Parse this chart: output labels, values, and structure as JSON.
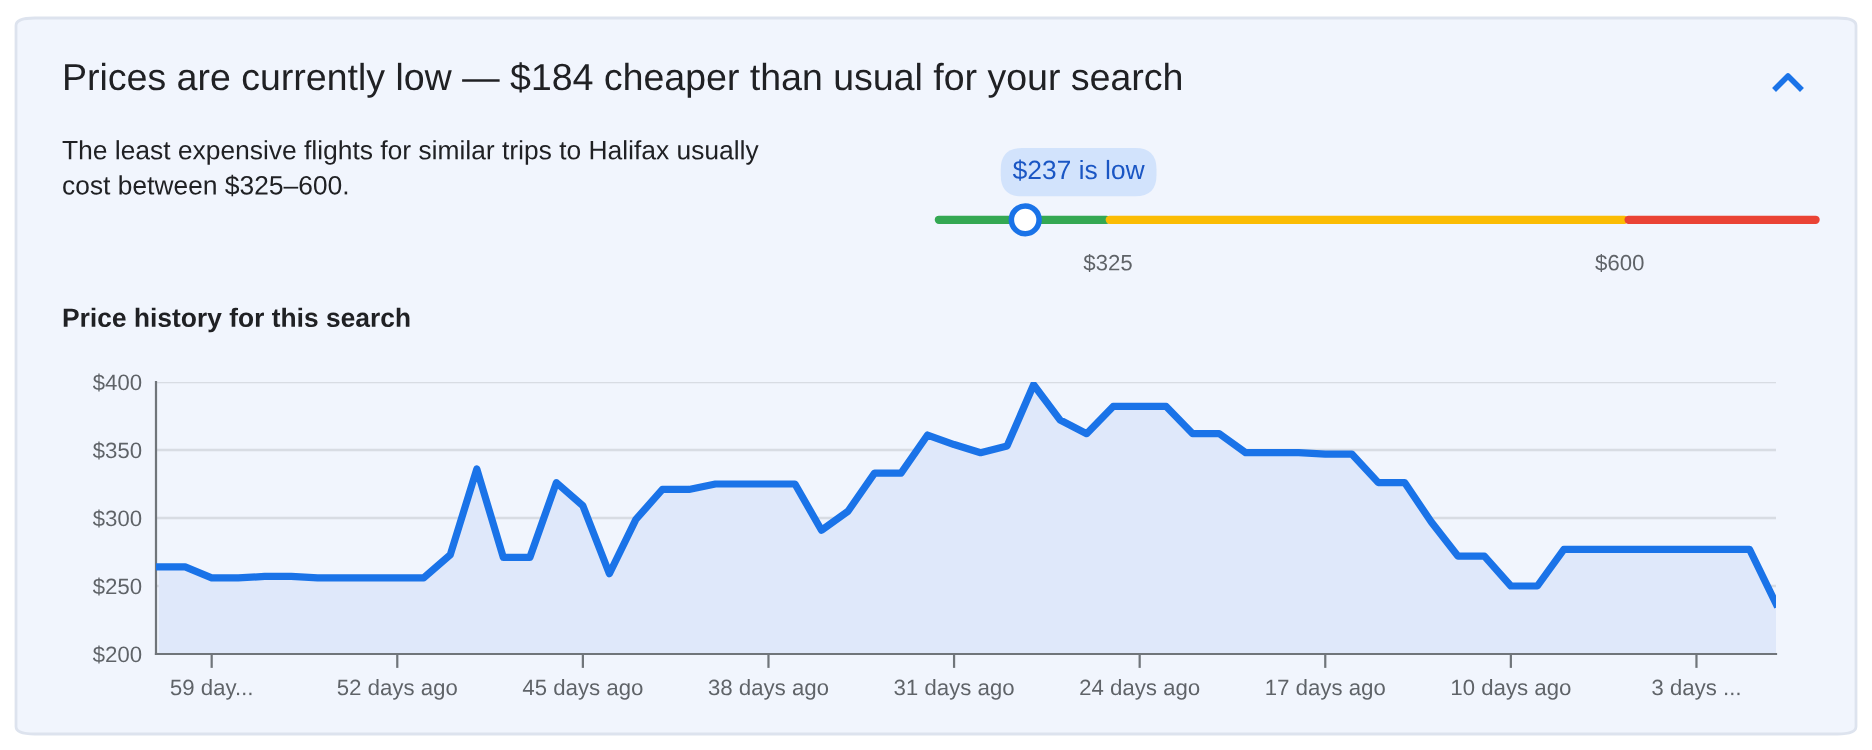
{
  "chart_data": [
    {
      "type": "other",
      "title": "Prices are currently low — $184 cheaper than usual for your search",
      "annotations": [
        "The least expensive flights for similar trips to Halifax usually\ncost between $325–600.",
        "$237 is low",
        "$325",
        "$600"
      ],
      "colors": [
        "#34a853",
        "#fbbc04",
        "#ea4335"
      ]
    },
    {
      "type": "area",
      "title": "Price history for this search",
      "x": [
        61,
        60,
        59,
        58,
        57,
        56,
        55,
        54,
        53,
        52,
        51,
        50,
        49,
        48,
        47,
        46,
        45,
        44,
        43,
        42,
        41,
        40,
        39,
        38,
        37,
        36,
        35,
        34,
        33,
        32,
        31,
        30,
        29,
        28,
        27,
        26,
        25,
        24,
        23,
        22,
        21,
        20,
        19,
        18,
        17,
        16,
        15,
        14,
        13,
        12,
        11,
        10,
        9,
        8,
        7,
        6,
        5,
        4,
        3,
        2,
        1,
        0
      ],
      "series": [
        {
          "color": "#1a73e8",
          "values": [
            264,
            264,
            256,
            256,
            257,
            257,
            256,
            256,
            256,
            256,
            256,
            273,
            336,
            271,
            271,
            326,
            309,
            259,
            299,
            321,
            321,
            325,
            325,
            325,
            325,
            291,
            305,
            333,
            333,
            361,
            354,
            348,
            353,
            398,
            372,
            362,
            382,
            382,
            382,
            362,
            362,
            348,
            348,
            348,
            347,
            347,
            326,
            326,
            297,
            272,
            272,
            250,
            250,
            277,
            277,
            277,
            277,
            277,
            277,
            277,
            277,
            237
          ]
        }
      ],
      "xlim": [
        61.1,
        0
      ],
      "xticks": [
        {
          "value": 59,
          "label": "59 day..."
        },
        {
          "value": 52,
          "label": "52 days ago"
        },
        {
          "value": 45,
          "label": "45 days ago"
        },
        {
          "value": 38,
          "label": "38 days ago"
        },
        {
          "value": 31,
          "label": "31 days ago"
        },
        {
          "value": 24,
          "label": "24 days ago"
        },
        {
          "value": 17,
          "label": "17 days ago"
        },
        {
          "value": 10,
          "label": "10 days ago"
        },
        {
          "value": 3,
          "label": "3 days ..."
        }
      ],
      "ylim": [
        200,
        400
      ],
      "yticks": [
        {
          "value": 200,
          "label": "$200"
        },
        {
          "value": 250,
          "label": "$250"
        },
        {
          "value": 300,
          "label": "$300"
        },
        {
          "value": 350,
          "label": "$350"
        },
        {
          "value": 400,
          "label": "$400"
        }
      ],
      "grid": "y",
      "legend": false,
      "marker": "none",
      "line_style": "solid"
    }
  ]
}
